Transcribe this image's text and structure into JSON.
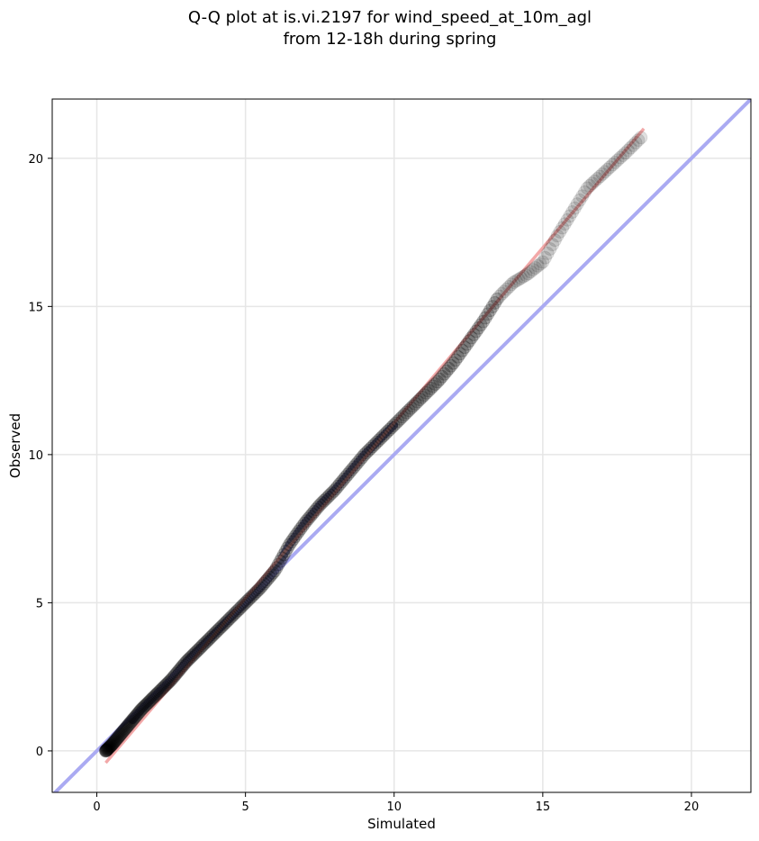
{
  "chart_data": {
    "type": "scatter",
    "title_lines": [
      "Q-Q plot at is.vi.2197 for wind_speed_at_10m_agl",
      "from 12-18h during spring"
    ],
    "xlabel": "Simulated",
    "ylabel": "Observed",
    "xlim": [
      -1.5,
      22
    ],
    "ylim": [
      -1.4,
      22
    ],
    "xticks": [
      0,
      5,
      10,
      15,
      20
    ],
    "yticks": [
      0,
      5,
      10,
      15,
      20
    ],
    "grid": true,
    "colors": {
      "points": "#000000",
      "identity_line": "#aaaaf2",
      "fit_line": "#f2a8a8",
      "low_density_fill": "#1a1a60",
      "mid_density_fill": "#6b1010"
    },
    "identity_line": {
      "x": [
        -1.5,
        22
      ],
      "y": [
        -1.5,
        22
      ]
    },
    "fit_line": {
      "x": [
        0.3,
        18.4
      ],
      "y": [
        -0.4,
        21.0
      ]
    },
    "quantile_curve": {
      "x": [
        0.3,
        0.5,
        1.0,
        1.5,
        2.0,
        2.5,
        3.0,
        3.5,
        4.0,
        4.5,
        5.0,
        5.5,
        6.0,
        6.5,
        7.0,
        7.5,
        8.0,
        8.5,
        9.0,
        9.5,
        10.0,
        10.5,
        11.0,
        11.5,
        12.0,
        12.5,
        13.0,
        13.5,
        14.0,
        14.5,
        15.0,
        15.5,
        16.0,
        16.5,
        17.8,
        18.3
      ],
      "y": [
        0.0,
        0.2,
        0.8,
        1.4,
        1.9,
        2.4,
        3.0,
        3.5,
        4.0,
        4.5,
        5.0,
        5.5,
        6.1,
        7.0,
        7.7,
        8.3,
        8.8,
        9.4,
        10.0,
        10.5,
        11.0,
        11.5,
        12.0,
        12.5,
        13.1,
        13.8,
        14.5,
        15.3,
        15.8,
        16.1,
        16.5,
        17.4,
        18.2,
        19.0,
        20.2,
        20.7
      ]
    },
    "point_count": 300
  }
}
